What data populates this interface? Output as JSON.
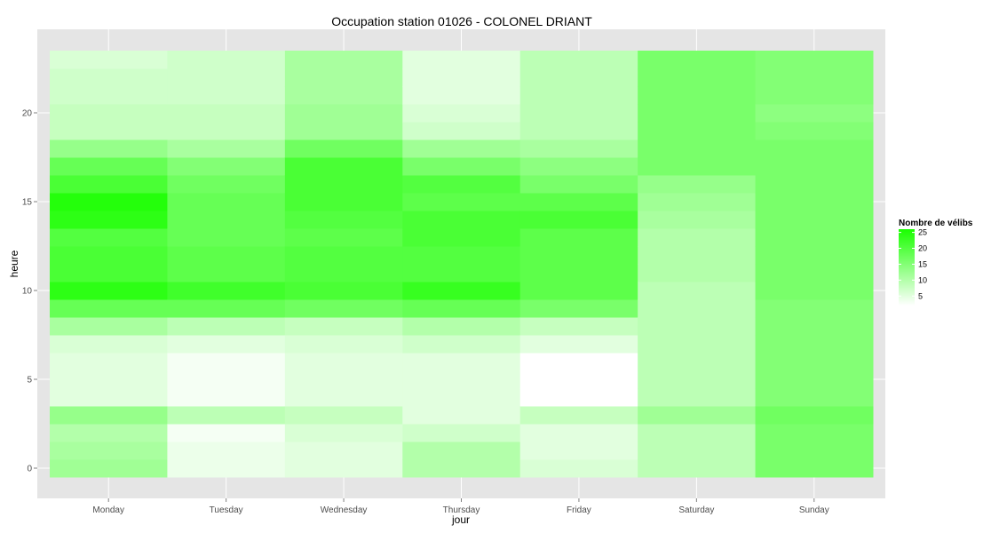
{
  "chart_data": {
    "type": "heatmap",
    "title": "Occupation station 01026 - COLONEL DRIANT",
    "xlabel": "jour",
    "ylabel": "heure",
    "categories": [
      "Monday",
      "Tuesday",
      "Wednesday",
      "Thursday",
      "Friday",
      "Saturday",
      "Sunday"
    ],
    "hours": [
      0,
      1,
      2,
      3,
      4,
      5,
      6,
      7,
      8,
      9,
      10,
      11,
      12,
      13,
      14,
      15,
      16,
      17,
      18,
      19,
      20,
      21,
      22,
      23
    ],
    "ylim": [
      -0.5,
      23.5
    ],
    "yticks": [
      0,
      5,
      10,
      15,
      20
    ],
    "grid": true,
    "legend_position": "right",
    "legend": {
      "title": "Nombre de vélibs",
      "labels": [
        25,
        20,
        15,
        10,
        5
      ],
      "min": 2,
      "max": 26,
      "low_color": "#ffffff",
      "high_color": "#1aff00"
    },
    "values": [
      [
        12,
        11,
        10,
        13,
        5,
        5,
        5,
        6,
        11,
        18,
        24,
        21,
        21,
        20,
        24,
        25,
        21,
        18,
        13,
        8,
        8,
        7,
        7,
        6
      ],
      [
        4,
        4,
        3,
        9,
        3,
        3,
        3,
        5,
        9,
        18,
        22,
        19,
        19,
        18,
        18,
        18,
        17,
        15,
        11,
        8,
        8,
        7,
        7,
        7
      ],
      [
        5,
        5,
        6,
        8,
        5,
        5,
        5,
        6,
        8,
        17,
        21,
        20,
        20,
        19,
        20,
        21,
        21,
        21,
        17,
        12,
        12,
        11,
        11,
        11
      ],
      [
        10,
        10,
        7,
        5,
        5,
        5,
        5,
        7,
        10,
        18,
        23,
        20,
        20,
        21,
        21,
        19,
        20,
        16,
        12,
        7,
        6,
        5,
        5,
        5
      ],
      [
        6,
        5,
        5,
        8,
        2,
        2,
        2,
        5,
        8,
        16,
        19,
        19,
        19,
        19,
        21,
        19,
        16,
        14,
        11,
        9,
        9,
        9,
        9,
        9
      ],
      [
        9,
        9,
        9,
        12,
        9,
        9,
        9,
        9,
        9,
        9,
        9,
        10,
        10,
        10,
        11,
        12,
        13,
        16,
        16,
        16,
        16,
        16,
        16,
        16
      ],
      [
        16,
        16,
        16,
        17,
        15,
        15,
        15,
        15,
        15,
        15,
        16,
        16,
        16,
        16,
        16,
        16,
        16,
        16,
        16,
        15,
        14,
        15,
        15,
        15
      ]
    ]
  }
}
